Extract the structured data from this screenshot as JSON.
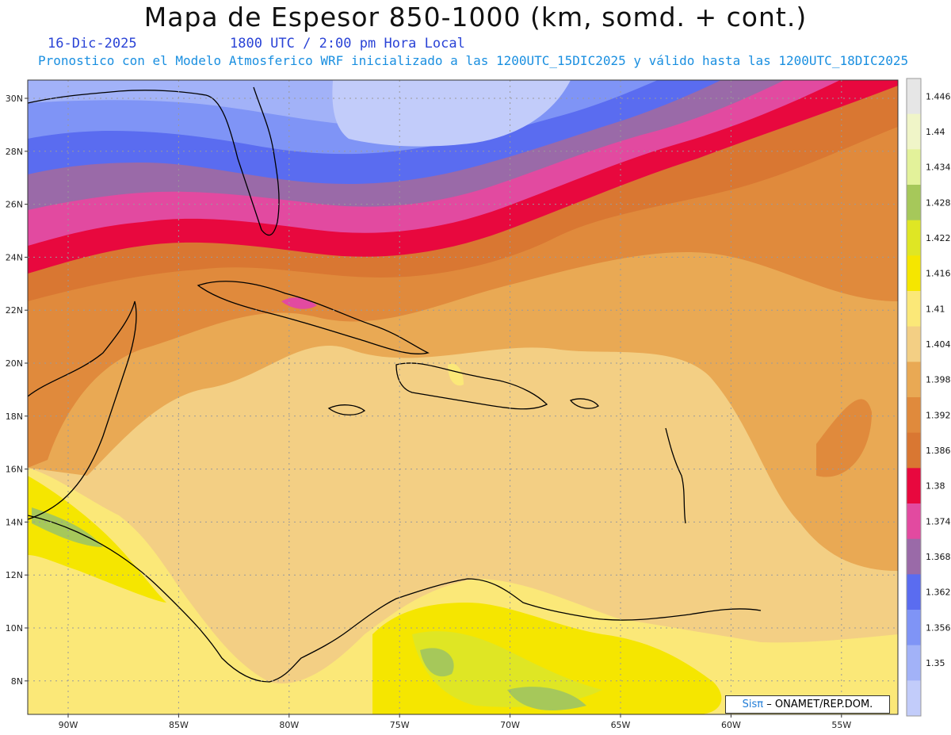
{
  "header": {
    "title": "Mapa de Espesor 850-1000 (km, somd. + cont.)",
    "date": "16-Dic-2025",
    "time": "1800 UTC / 2:00 pm Hora Local",
    "description": "Pronostico con el Modelo Atmosferico WRF inicializado a las 1200UTC_15DIC2025 y válido hasta las  1200UTC_18DIC2025"
  },
  "axes": {
    "lat_labels": [
      "30N",
      "28N",
      "26N",
      "24N",
      "22N",
      "20N",
      "18N",
      "16N",
      "14N",
      "12N",
      "10N",
      "8N"
    ],
    "lon_labels": [
      "90W",
      "85W",
      "80W",
      "75W",
      "70W",
      "65W",
      "60W",
      "55W"
    ]
  },
  "colorbar": {
    "levels": [
      "1.446",
      "1.44",
      "1.434",
      "1.428",
      "1.422",
      "1.416",
      "1.41",
      "1.404",
      "1.398",
      "1.392",
      "1.386",
      "1.38",
      "1.374",
      "1.368",
      "1.362",
      "1.356",
      "1.35"
    ],
    "colors": [
      "#e6e6e6",
      "#f0f5c8",
      "#e3f29a",
      "#a6c85a",
      "#dfe624",
      "#f5e600",
      "#fbe878",
      "#f3cf84",
      "#e9a954",
      "#e08a3c",
      "#d97732",
      "#e8083e",
      "#e24aa0",
      "#9a6aa8",
      "#5a6cf0",
      "#7f94f6",
      "#a2b2f8",
      "#c2ccfa"
    ]
  },
  "credit": {
    "brand": "Sisπ",
    "text": "– ONAMET/REP.DOM."
  }
}
